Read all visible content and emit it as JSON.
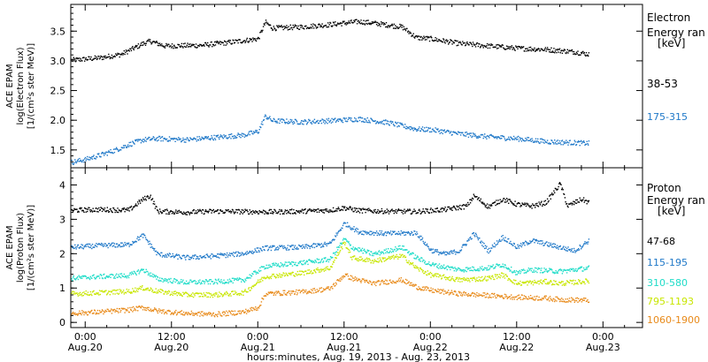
{
  "chart_data": {
    "type": "scatter",
    "x_axis": {
      "ticks": [
        {
          "time": "0:00",
          "date": "Aug.20",
          "hours": 0
        },
        {
          "time": "12:00",
          "date": "Aug.20",
          "hours": 12
        },
        {
          "time": "0:00",
          "date": "Aug.21",
          "hours": 24
        },
        {
          "time": "12:00",
          "date": "Aug.21",
          "hours": 36
        },
        {
          "time": "0:00",
          "date": "Aug.22",
          "hours": 48
        },
        {
          "time": "12:00",
          "date": "Aug.22",
          "hours": 60
        },
        {
          "time": "0:00",
          "date": "Aug.23",
          "hours": 72
        }
      ],
      "xlim_hours": [
        -2,
        77.5
      ],
      "data_end_hours": 70,
      "label": "hours:minutes, Aug. 19, 2013 - Aug. 23, 2013"
    },
    "panels": [
      {
        "id": "electron",
        "ylabel_lines": [
          "ACE EPAM",
          "log(Electron Flux)",
          "[1/(cm²s ster MeV)]"
        ],
        "ylim": [
          1.2,
          3.95
        ],
        "yticks": [
          1.5,
          2.0,
          2.5,
          3.0,
          3.5
        ],
        "ytick_labels": [
          "1.5",
          "2.0",
          "2.5",
          "3.0",
          "3.5"
        ],
        "legend_title": [
          "Electron",
          "Energy ran",
          "[keV]"
        ],
        "series": [
          {
            "name": "38-53",
            "color": "#000000",
            "points": [
              [
                -2,
                3.02
              ],
              [
                2,
                3.06
              ],
              [
                5,
                3.12
              ],
              [
                8,
                3.3
              ],
              [
                9,
                3.34
              ],
              [
                11,
                3.26
              ],
              [
                16,
                3.27
              ],
              [
                20,
                3.32
              ],
              [
                24,
                3.38
              ],
              [
                25,
                3.66
              ],
              [
                26,
                3.56
              ],
              [
                30,
                3.58
              ],
              [
                34,
                3.62
              ],
              [
                38,
                3.67
              ],
              [
                41,
                3.63
              ],
              [
                44,
                3.58
              ],
              [
                46,
                3.4
              ],
              [
                48,
                3.38
              ],
              [
                52,
                3.3
              ],
              [
                56,
                3.26
              ],
              [
                60,
                3.22
              ],
              [
                64,
                3.2
              ],
              [
                68,
                3.16
              ],
              [
                70,
                3.12
              ]
            ]
          },
          {
            "name": "175-315",
            "color": "#1f78c8",
            "points": [
              [
                -2,
                1.3
              ],
              [
                0,
                1.35
              ],
              [
                2,
                1.42
              ],
              [
                4,
                1.5
              ],
              [
                6,
                1.6
              ],
              [
                8,
                1.68
              ],
              [
                10,
                1.7
              ],
              [
                14,
                1.68
              ],
              [
                18,
                1.72
              ],
              [
                22,
                1.76
              ],
              [
                24,
                1.82
              ],
              [
                25,
                2.08
              ],
              [
                26,
                2.0
              ],
              [
                30,
                1.98
              ],
              [
                34,
                2.0
              ],
              [
                38,
                2.03
              ],
              [
                42,
                1.97
              ],
              [
                46,
                1.86
              ],
              [
                48,
                1.85
              ],
              [
                52,
                1.78
              ],
              [
                56,
                1.73
              ],
              [
                60,
                1.7
              ],
              [
                64,
                1.65
              ],
              [
                68,
                1.63
              ],
              [
                70,
                1.62
              ]
            ]
          }
        ]
      },
      {
        "id": "proton",
        "ylabel_lines": [
          "ACE EPAM",
          "log(Proton Flux)",
          "[1/(cm²s ster MeV)]"
        ],
        "ylim": [
          -0.15,
          4.5
        ],
        "yticks": [
          0,
          1,
          2,
          3,
          4
        ],
        "ytick_labels": [
          "0",
          "1",
          "2",
          "3",
          "4"
        ],
        "legend_title": [
          "Proton",
          "Energy ran",
          "[keV]"
        ],
        "series": [
          {
            "name": "47-68",
            "color": "#000000",
            "points": [
              [
                -2,
                3.28
              ],
              [
                2,
                3.3
              ],
              [
                6,
                3.28
              ],
              [
                8,
                3.6
              ],
              [
                9,
                3.7
              ],
              [
                10,
                3.25
              ],
              [
                14,
                3.22
              ],
              [
                18,
                3.25
              ],
              [
                22,
                3.24
              ],
              [
                26,
                3.23
              ],
              [
                30,
                3.25
              ],
              [
                34,
                3.28
              ],
              [
                36,
                3.35
              ],
              [
                38,
                3.27
              ],
              [
                42,
                3.25
              ],
              [
                46,
                3.24
              ],
              [
                50,
                3.3
              ],
              [
                53,
                3.4
              ],
              [
                54,
                3.7
              ],
              [
                56,
                3.38
              ],
              [
                58,
                3.6
              ],
              [
                60,
                3.45
              ],
              [
                62,
                3.4
              ],
              [
                64,
                3.5
              ],
              [
                66,
                4.05
              ],
              [
                67,
                3.4
              ],
              [
                69,
                3.6
              ],
              [
                70,
                3.5
              ]
            ]
          },
          {
            "name": "115-195",
            "color": "#1f78c8",
            "points": [
              [
                -2,
                2.2
              ],
              [
                2,
                2.25
              ],
              [
                6,
                2.28
              ],
              [
                8,
                2.55
              ],
              [
                10,
                2.0
              ],
              [
                14,
                1.9
              ],
              [
                18,
                1.95
              ],
              [
                22,
                2.02
              ],
              [
                25,
                2.18
              ],
              [
                30,
                2.2
              ],
              [
                34,
                2.3
              ],
              [
                36,
                2.9
              ],
              [
                38,
                2.65
              ],
              [
                42,
                2.6
              ],
              [
                46,
                2.62
              ],
              [
                48,
                2.12
              ],
              [
                50,
                2.0
              ],
              [
                52,
                2.1
              ],
              [
                54,
                2.6
              ],
              [
                56,
                2.1
              ],
              [
                58,
                2.5
              ],
              [
                60,
                2.2
              ],
              [
                62,
                2.4
              ],
              [
                64,
                2.3
              ],
              [
                66,
                2.2
              ],
              [
                68,
                2.1
              ],
              [
                70,
                2.4
              ]
            ]
          },
          {
            "name": "310-580",
            "color": "#1fdcc8",
            "points": [
              [
                -2,
                1.3
              ],
              [
                2,
                1.35
              ],
              [
                6,
                1.38
              ],
              [
                8,
                1.55
              ],
              [
                10,
                1.28
              ],
              [
                14,
                1.18
              ],
              [
                18,
                1.2
              ],
              [
                22,
                1.25
              ],
              [
                25,
                1.65
              ],
              [
                30,
                1.75
              ],
              [
                34,
                1.85
              ],
              [
                36,
                2.45
              ],
              [
                37,
                2.2
              ],
              [
                40,
                2.0
              ],
              [
                44,
                2.2
              ],
              [
                46,
                1.9
              ],
              [
                48,
                1.7
              ],
              [
                52,
                1.55
              ],
              [
                56,
                1.6
              ],
              [
                58,
                1.7
              ],
              [
                60,
                1.45
              ],
              [
                62,
                1.55
              ],
              [
                66,
                1.5
              ],
              [
                70,
                1.6
              ]
            ]
          },
          {
            "name": "795-1193",
            "color": "#c8e600",
            "points": [
              [
                -2,
                0.85
              ],
              [
                2,
                0.88
              ],
              [
                6,
                0.92
              ],
              [
                8,
                1.02
              ],
              [
                10,
                0.92
              ],
              [
                14,
                0.82
              ],
              [
                18,
                0.82
              ],
              [
                22,
                0.88
              ],
              [
                25,
                1.35
              ],
              [
                30,
                1.45
              ],
              [
                34,
                1.6
              ],
              [
                36,
                2.35
              ],
              [
                37,
                1.9
              ],
              [
                40,
                1.8
              ],
              [
                44,
                1.95
              ],
              [
                46,
                1.6
              ],
              [
                48,
                1.4
              ],
              [
                52,
                1.25
              ],
              [
                56,
                1.3
              ],
              [
                58,
                1.4
              ],
              [
                60,
                1.15
              ],
              [
                64,
                1.2
              ],
              [
                66,
                1.15
              ],
              [
                70,
                1.22
              ]
            ]
          },
          {
            "name": "1060-1900",
            "color": "#e88a1a",
            "points": [
              [
                -2,
                0.28
              ],
              [
                2,
                0.32
              ],
              [
                6,
                0.38
              ],
              [
                8,
                0.45
              ],
              [
                10,
                0.35
              ],
              [
                14,
                0.28
              ],
              [
                18,
                0.25
              ],
              [
                22,
                0.32
              ],
              [
                24,
                0.45
              ],
              [
                25,
                0.85
              ],
              [
                30,
                0.9
              ],
              [
                34,
                1.0
              ],
              [
                36,
                1.4
              ],
              [
                37,
                1.3
              ],
              [
                40,
                1.15
              ],
              [
                44,
                1.25
              ],
              [
                46,
                1.05
              ],
              [
                48,
                0.95
              ],
              [
                52,
                0.85
              ],
              [
                56,
                0.8
              ],
              [
                60,
                0.75
              ],
              [
                64,
                0.72
              ],
              [
                66,
                0.68
              ],
              [
                70,
                0.66
              ]
            ]
          }
        ]
      }
    ]
  }
}
